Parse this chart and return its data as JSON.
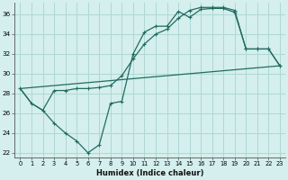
{
  "xlabel": "Humidex (Indice chaleur)",
  "xlim": [
    -0.5,
    23.5
  ],
  "ylim": [
    21.5,
    37.2
  ],
  "xticks": [
    0,
    1,
    2,
    3,
    4,
    5,
    6,
    7,
    8,
    9,
    10,
    11,
    12,
    13,
    14,
    15,
    16,
    17,
    18,
    19,
    20,
    21,
    22,
    23
  ],
  "yticks": [
    22,
    24,
    26,
    28,
    30,
    32,
    34,
    36
  ],
  "bg_color": "#d4efed",
  "grid_color": "#aed8d5",
  "line_color": "#226b63",
  "line1_x": [
    0,
    1,
    2,
    3,
    4,
    5,
    6,
    7,
    8,
    9,
    10,
    11,
    12,
    13,
    14,
    15,
    16,
    17,
    18,
    19,
    20,
    21,
    22,
    23
  ],
  "line1_y": [
    28.5,
    27.0,
    26.3,
    25.0,
    24.0,
    23.2,
    22.0,
    22.8,
    27.0,
    27.2,
    32.0,
    34.2,
    34.8,
    34.8,
    36.3,
    35.7,
    36.5,
    36.6,
    36.6,
    36.2,
    32.5,
    32.5,
    32.5,
    30.8
  ],
  "line2_x": [
    0,
    1,
    2,
    3,
    4,
    5,
    6,
    7,
    8,
    9,
    10,
    11,
    12,
    13,
    14,
    15,
    16,
    17,
    18,
    19,
    20,
    21,
    22,
    23
  ],
  "line2_y": [
    28.5,
    27.0,
    26.3,
    28.3,
    28.3,
    28.5,
    28.5,
    28.6,
    28.8,
    29.8,
    31.5,
    33.0,
    34.0,
    34.5,
    35.6,
    36.4,
    36.7,
    36.7,
    36.7,
    36.4,
    32.5,
    32.5,
    32.5,
    30.8
  ],
  "line3_x": [
    0,
    23
  ],
  "line3_y": [
    28.5,
    30.8
  ]
}
